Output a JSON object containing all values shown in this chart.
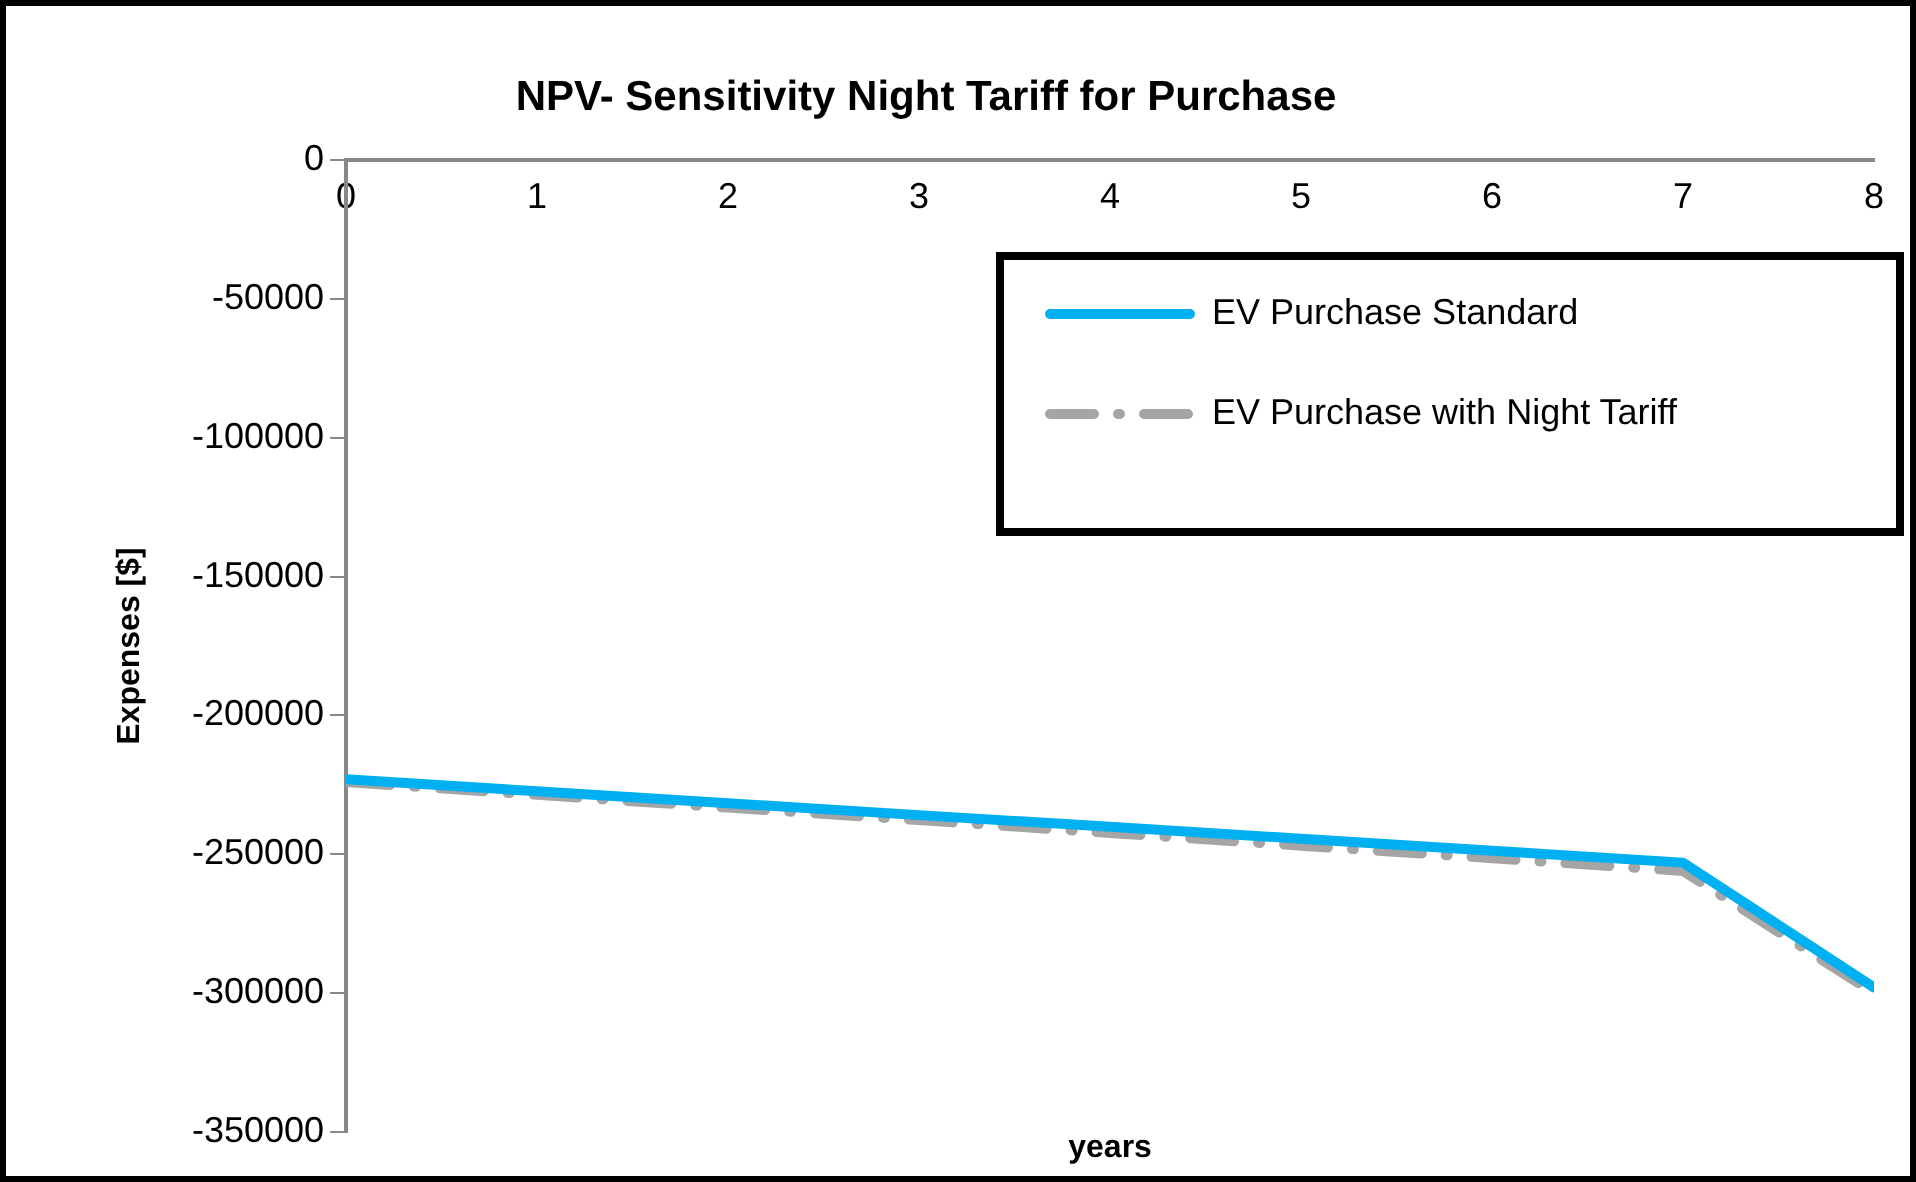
{
  "chart_data": {
    "type": "line",
    "title": "NPV- Sensitivity Night Tariff for Purchase",
    "xlabel": "years",
    "ylabel": "Expenses [$]",
    "x": [
      0,
      1,
      2,
      3,
      4,
      5,
      6,
      7,
      8
    ],
    "series": [
      {
        "name": "EV Purchase Standard",
        "color": "#00b0f0",
        "values": [
          -223000,
          -227300,
          -231600,
          -235900,
          -240100,
          -244400,
          -248700,
          -253000,
          -298000
        ]
      },
      {
        "name": "EV Purchase with Night Tariff",
        "color": "#a5a5a5",
        "line_style": "dashed",
        "values": [
          -224000,
          -228600,
          -233200,
          -237700,
          -242300,
          -246900,
          -251400,
          -256000,
          -300000
        ]
      }
    ],
    "xlim": [
      0,
      8
    ],
    "xticks": [
      0,
      1,
      2,
      3,
      4,
      5,
      6,
      7,
      8
    ],
    "ylim": [
      -350000,
      0
    ],
    "yticks": [
      -350000,
      -300000,
      -250000,
      -200000,
      -150000,
      -100000,
      -50000,
      0
    ],
    "grid": false,
    "legend": "top right",
    "marker": "none"
  }
}
